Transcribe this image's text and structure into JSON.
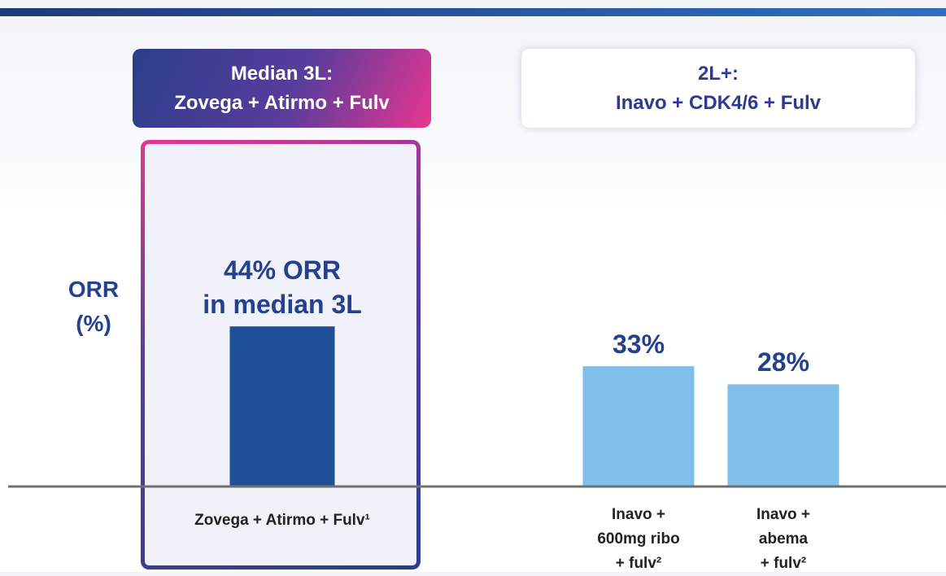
{
  "chart_data": {
    "type": "bar",
    "y_label": "ORR\n(%)",
    "groups": [
      "Median 3L:\nZovega + Atirmo + Fulv",
      "2L+:\nInavo + CDK4/6 + Fulv"
    ],
    "categories": [
      "Zovega + Atirmo + Fulv¹",
      "Inavo +\n600mg ribo\n+ fulv²",
      "Inavo +\nabema\n+ fulv²"
    ],
    "values": [
      44,
      33,
      28
    ],
    "value_labels": [
      "44% ORR\nin median 3L",
      "33%",
      "28%"
    ],
    "colors": [
      "#1f4f96",
      "#7fbfe9",
      "#7fbfe9"
    ]
  }
}
